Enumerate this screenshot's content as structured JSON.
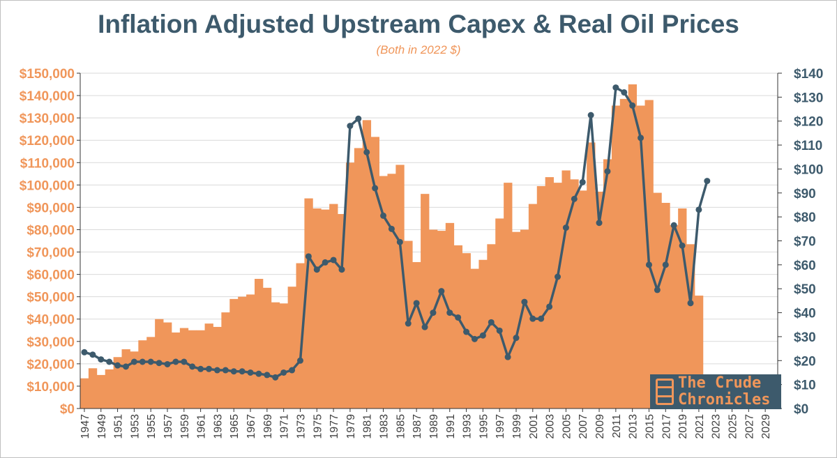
{
  "chart_data": {
    "type": "bar+line",
    "title": "Inflation Adjusted Upstream Capex & Real Oil Prices",
    "subtitle": "(Both in 2022 $)",
    "x": [
      1947,
      1948,
      1949,
      1950,
      1951,
      1952,
      1953,
      1954,
      1955,
      1956,
      1957,
      1958,
      1959,
      1960,
      1961,
      1962,
      1963,
      1964,
      1965,
      1966,
      1967,
      1968,
      1969,
      1970,
      1971,
      1972,
      1973,
      1974,
      1975,
      1976,
      1977,
      1978,
      1979,
      1980,
      1981,
      1982,
      1983,
      1984,
      1985,
      1986,
      1987,
      1988,
      1989,
      1990,
      1991,
      1992,
      1993,
      1994,
      1995,
      1996,
      1997,
      1998,
      1999,
      2000,
      2001,
      2002,
      2003,
      2004,
      2005,
      2006,
      2007,
      2008,
      2009,
      2010,
      2011,
      2012,
      2013,
      2014,
      2015,
      2016,
      2017,
      2018,
      2019,
      2020,
      2021,
      2022,
      2023,
      2024,
      2025,
      2026,
      2027,
      2028,
      2029,
      2030
    ],
    "x_tick_labels": [
      "1947",
      "1949",
      "1951",
      "1953",
      "1955",
      "1957",
      "1959",
      "1961",
      "1963",
      "1965",
      "1967",
      "1969",
      "1971",
      "1973",
      "1975",
      "1977",
      "1979",
      "1981",
      "1983",
      "1985",
      "1987",
      "1989",
      "1991",
      "1993",
      "1995",
      "1997",
      "1999",
      "2001",
      "2003",
      "2005",
      "2007",
      "2009",
      "2011",
      "2013",
      "2015",
      "2017",
      "2019",
      "2021",
      "2023",
      "2025",
      "2027",
      "2029"
    ],
    "series": [
      {
        "type": "bar",
        "axis": "left",
        "color": "#f0965a",
        "values": [
          13500,
          18000,
          15000,
          17500,
          23000,
          26500,
          25500,
          30500,
          32000,
          40000,
          38500,
          34000,
          36000,
          35000,
          35000,
          38000,
          36500,
          43000,
          49000,
          50000,
          51000,
          58000,
          54000,
          47500,
          47000,
          54500,
          65000,
          94000,
          89500,
          89000,
          91500,
          87000,
          110000,
          116500,
          129000,
          121500,
          104000,
          105000,
          109000,
          75000,
          65500,
          96000,
          80000,
          79500,
          83000,
          73000,
          69500,
          62500,
          66500,
          73500,
          85000,
          101000,
          79000,
          80000,
          91500,
          99500,
          103500,
          101000,
          106500,
          102500,
          97500,
          119000,
          97000,
          111500,
          135500,
          138500,
          145000,
          135500,
          138000,
          96500,
          92000,
          82000,
          89500,
          73500,
          50500,
          null,
          null,
          null,
          null,
          null,
          null,
          null,
          null,
          null
        ]
      },
      {
        "type": "line",
        "axis": "right",
        "color": "#3d5a6c",
        "values": [
          23.5,
          22.5,
          20.5,
          19.5,
          18.0,
          17.5,
          19.5,
          19.5,
          19.5,
          19.0,
          18.5,
          19.5,
          19.5,
          17.5,
          16.5,
          16.5,
          16.0,
          16.0,
          15.5,
          15.5,
          15.0,
          14.5,
          14.0,
          13.0,
          15.0,
          16.0,
          20.0,
          63.5,
          58.0,
          61.0,
          62.0,
          58.0,
          118.0,
          121.0,
          107.0,
          92.0,
          80.5,
          75.0,
          69.5,
          35.5,
          44.0,
          34.0,
          40.0,
          49.0,
          40.0,
          38.0,
          32.0,
          29.0,
          30.5,
          36.0,
          32.5,
          21.5,
          29.5,
          44.5,
          37.5,
          37.5,
          42.5,
          55.0,
          75.5,
          87.5,
          94.5,
          122.5,
          77.5,
          99.0,
          134.0,
          132.0,
          126.5,
          113.0,
          60.0,
          49.5,
          60.0,
          76.5,
          68.0,
          44.0,
          83.0,
          95.0,
          null,
          null,
          null,
          null,
          null,
          null,
          null,
          null
        ]
      }
    ],
    "y_left": {
      "min": 0,
      "max": 150000,
      "step": 10000,
      "tick_labels": [
        "$0",
        "$10,000",
        "$20,000",
        "$30,000",
        "$40,000",
        "$50,000",
        "$60,000",
        "$70,000",
        "$80,000",
        "$90,000",
        "$100,000",
        "$110,000",
        "$120,000",
        "$130,000",
        "$140,000",
        "$150,000"
      ]
    },
    "y_right": {
      "min": 0,
      "max": 140,
      "step": 10,
      "tick_labels": [
        "$0",
        "$10",
        "$20",
        "$30",
        "$40",
        "$50",
        "$60",
        "$70",
        "$80",
        "$90",
        "$100",
        "$110",
        "$120",
        "$130",
        "$140"
      ]
    },
    "grid": "horizontal",
    "legend": "none"
  },
  "logo": {
    "line1": "The Crude",
    "line2": "Chronicles"
  }
}
